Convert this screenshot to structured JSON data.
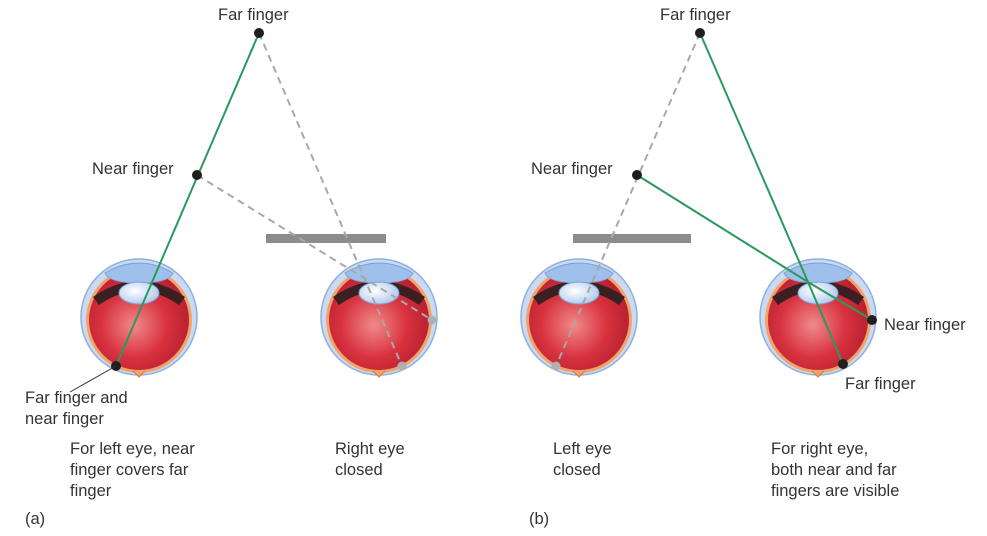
{
  "panel_a": {
    "label": "(a)",
    "far_finger": "Far finger",
    "near_finger": "Near finger",
    "retina_label_line1": "Far finger and",
    "retina_label_line2": "near finger",
    "caption_left": [
      "For left eye, near",
      "finger covers far",
      "finger"
    ],
    "caption_right": [
      "Right eye",
      "closed"
    ]
  },
  "panel_b": {
    "label": "(b)",
    "far_finger": "Far finger",
    "near_finger": "Near finger",
    "retina_near": "Near finger",
    "retina_far": "Far finger",
    "caption_left": [
      "Left eye",
      "closed"
    ],
    "caption_right": [
      "For right eye,",
      "both near and far",
      "fingers are visible"
    ]
  },
  "colors": {
    "open_path": "#2a9a5c",
    "closed_path": "#a8a8a8",
    "eyeball": "#d42a3c",
    "bar": "#8c8c8c"
  }
}
